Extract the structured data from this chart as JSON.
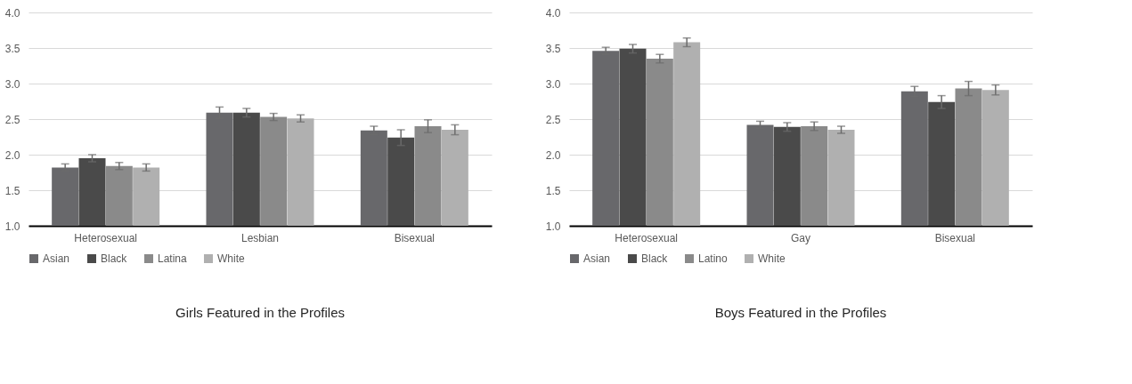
{
  "chart_data": [
    {
      "type": "bar",
      "title": "Girls Featured in the Profiles",
      "categories": [
        "Heterosexual",
        "Lesbian",
        "Bisexual"
      ],
      "ylim": [
        1.0,
        4.0
      ],
      "yticks": [
        {
          "value": 1,
          "label": "1.0"
        },
        {
          "value": 1.5,
          "label": "1.5"
        },
        {
          "value": 2,
          "label": "2.0"
        },
        {
          "value": 2.5,
          "label": "2.5"
        },
        {
          "value": 3,
          "label": "3.0"
        },
        {
          "value": 3.5,
          "label": "3.5"
        },
        {
          "value": 4,
          "label": "4.0"
        }
      ],
      "grid": "y",
      "legend": "bottom",
      "series": [
        {
          "name": "Asian",
          "color": "#68686b",
          "values": [
            1.82,
            2.59,
            2.34
          ],
          "errors": [
            0.05,
            0.08,
            0.06
          ]
        },
        {
          "name": "Black",
          "color": "#4a4a4a",
          "values": [
            1.95,
            2.59,
            2.24
          ],
          "errors": [
            0.05,
            0.06,
            0.11
          ]
        },
        {
          "name": "Latina",
          "color": "#8a8a8a",
          "values": [
            1.84,
            2.53,
            2.4
          ],
          "errors": [
            0.05,
            0.05,
            0.09
          ]
        },
        {
          "name": "White",
          "color": "#b0b0b0",
          "values": [
            1.82,
            2.51,
            2.35
          ],
          "errors": [
            0.05,
            0.05,
            0.07
          ]
        }
      ]
    },
    {
      "type": "bar",
      "title": "Boys Featured in the Profiles",
      "categories": [
        "Heterosexual",
        "Gay",
        "Bisexual"
      ],
      "ylim": [
        1.0,
        4.0
      ],
      "yticks": [
        {
          "value": 1,
          "label": "1.0"
        },
        {
          "value": 1.5,
          "label": "1.5"
        },
        {
          "value": 2,
          "label": "2.0"
        },
        {
          "value": 2.5,
          "label": "2.5"
        },
        {
          "value": 3,
          "label": "3.0"
        },
        {
          "value": 3.5,
          "label": "3.5"
        },
        {
          "value": 4,
          "label": "4.0"
        }
      ],
      "grid": "y",
      "legend": "bottom",
      "series": [
        {
          "name": "Asian",
          "color": "#68686b",
          "values": [
            3.46,
            2.42,
            2.89
          ],
          "errors": [
            0.05,
            0.05,
            0.07
          ]
        },
        {
          "name": "Black",
          "color": "#4a4a4a",
          "values": [
            3.49,
            2.39,
            2.74
          ],
          "errors": [
            0.06,
            0.06,
            0.09
          ]
        },
        {
          "name": "Latino",
          "color": "#8a8a8a",
          "values": [
            3.35,
            2.4,
            2.93
          ],
          "errors": [
            0.06,
            0.06,
            0.1
          ]
        },
        {
          "name": "White",
          "color": "#b0b0b0",
          "values": [
            3.58,
            2.35,
            2.91
          ],
          "errors": [
            0.06,
            0.05,
            0.07
          ]
        }
      ]
    }
  ]
}
